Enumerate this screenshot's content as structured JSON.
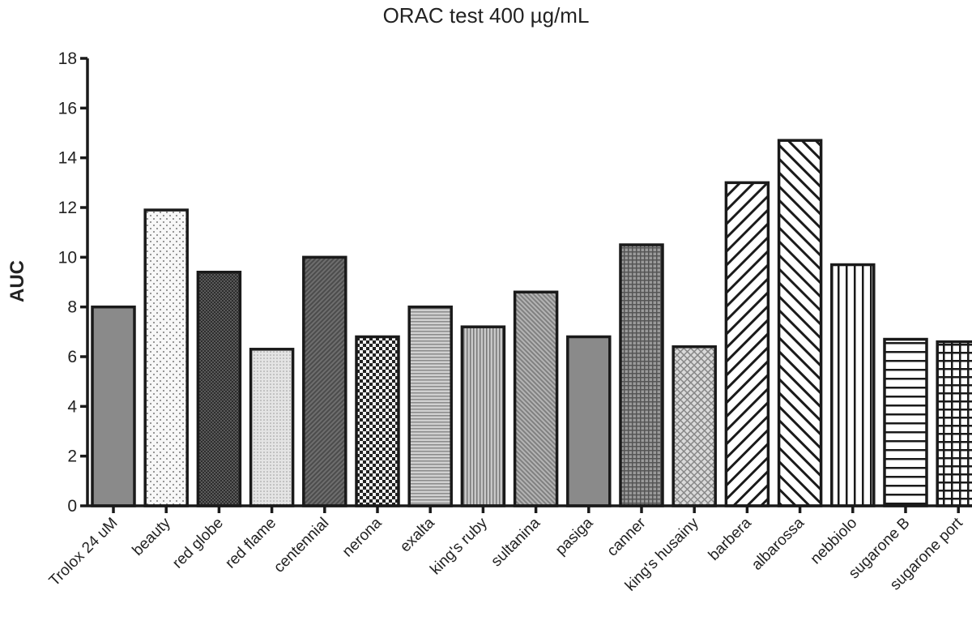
{
  "chart_data": {
    "type": "bar",
    "title": "ORAC test 400 µg/mL",
    "xlabel": "",
    "ylabel": "AUC",
    "ylim": [
      0,
      18
    ],
    "yticks": [
      0,
      2,
      4,
      6,
      8,
      10,
      12,
      14,
      16,
      18
    ],
    "grid": false,
    "categories": [
      "Trolox 24 uM",
      "beauty",
      "red globe",
      "red flame",
      "centennial",
      "nerona",
      "exalta",
      "king's ruby",
      "sultanina",
      "pasiga",
      "canner",
      "king's husainy",
      "barbera",
      "albarossa",
      "nebbiolo",
      "sugarone B",
      "sugarone port"
    ],
    "values": [
      8.0,
      11.9,
      9.4,
      6.3,
      10.0,
      6.8,
      8.0,
      7.2,
      8.6,
      6.8,
      10.5,
      6.4,
      13.0,
      14.7,
      9.7,
      6.7,
      6.6
    ],
    "patterns": [
      "solid-gray",
      "sparse-dots",
      "dark-crosshatch",
      "fine-dots",
      "dark-diagonal",
      "checker",
      "horizontal-lines",
      "vertical-lines",
      "diagonal-right",
      "solid-gray",
      "grid",
      "diamond",
      "diagonal-right-wide",
      "diagonal-left-wide",
      "vertical-wide",
      "horizontal-wide",
      "square-grid"
    ]
  }
}
